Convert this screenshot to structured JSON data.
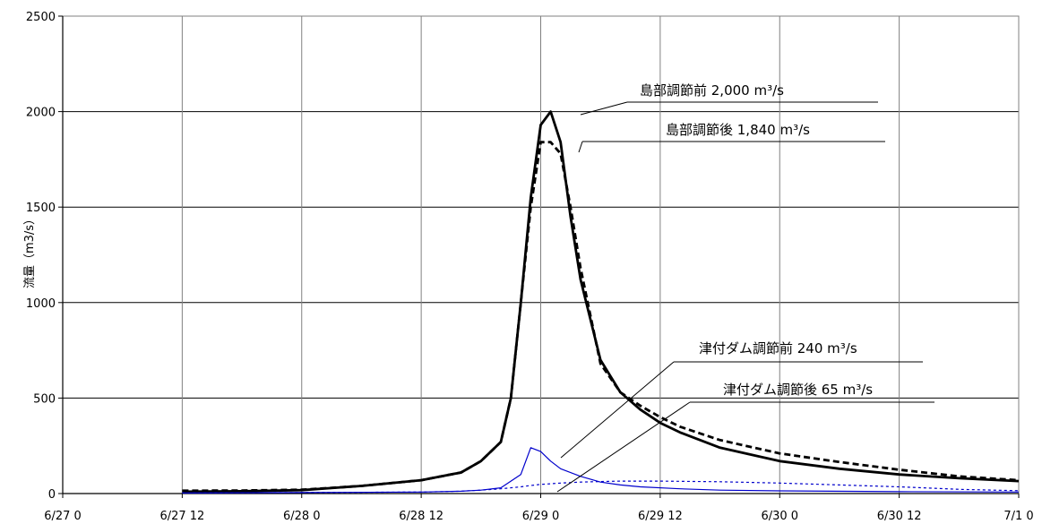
{
  "chart_data": {
    "type": "line",
    "ylabel": "流量（m3/s）",
    "xlabel": "",
    "title": "",
    "ylim": [
      0,
      2500
    ],
    "y_ticks": [
      "0",
      "500",
      "1000",
      "1500",
      "2000",
      "2500"
    ],
    "x_ticks": [
      "6/27 0",
      "6/27 12",
      "6/28 0",
      "6/28 12",
      "6/29 0",
      "6/29 12",
      "6/30 0",
      "6/30 12",
      "7/1 0"
    ],
    "grid": true,
    "legend": "none",
    "series": [
      {
        "key": "shimabe_before",
        "color": "#000000",
        "style": "solid-thick",
        "x": [
          12,
          18,
          24,
          30,
          36,
          40,
          42,
          44,
          45,
          46,
          47,
          48,
          49,
          50,
          51,
          52,
          54,
          56,
          58,
          60,
          62,
          66,
          72,
          78,
          84,
          90,
          96
        ],
        "y": [
          10,
          12,
          18,
          40,
          70,
          110,
          170,
          270,
          500,
          1000,
          1550,
          1930,
          2000,
          1840,
          1450,
          1120,
          700,
          530,
          440,
          370,
          320,
          240,
          170,
          130,
          100,
          80,
          65
        ]
      },
      {
        "key": "shimabe_after",
        "color": "#000000",
        "style": "dashed-thick",
        "x": [
          12,
          18,
          24,
          30,
          36,
          40,
          42,
          44,
          45,
          46,
          47,
          48,
          49,
          50,
          51,
          52,
          54,
          56,
          58,
          60,
          62,
          66,
          72,
          78,
          84,
          90,
          96
        ],
        "y": [
          15,
          16,
          20,
          40,
          70,
          110,
          170,
          270,
          500,
          1000,
          1500,
          1840,
          1840,
          1780,
          1500,
          1180,
          680,
          530,
          460,
          400,
          350,
          280,
          210,
          165,
          125,
          90,
          70
        ]
      },
      {
        "key": "tsuzuki_before",
        "color": "#0000cc",
        "style": "solid-thin",
        "x": [
          12,
          24,
          36,
          40,
          42,
          44,
          46,
          47,
          48,
          49,
          50,
          52,
          54,
          56,
          58,
          62,
          66,
          72,
          84,
          96
        ],
        "y": [
          3,
          5,
          8,
          12,
          18,
          30,
          100,
          240,
          220,
          170,
          130,
          90,
          60,
          45,
          35,
          25,
          18,
          14,
          10,
          8
        ]
      },
      {
        "key": "tsuzuki_after",
        "color": "#0000cc",
        "style": "dotted-thin",
        "x": [
          12,
          24,
          36,
          40,
          42,
          44,
          46,
          47,
          48,
          50,
          52,
          54,
          56,
          60,
          66,
          72,
          78,
          84,
          90,
          96
        ],
        "y": [
          3,
          5,
          8,
          12,
          18,
          25,
          35,
          42,
          48,
          55,
          60,
          63,
          65,
          65,
          62,
          55,
          45,
          35,
          22,
          15
        ]
      }
    ],
    "annotations": [
      {
        "key": "shimabe_before",
        "label": "島部調節前 2,000 m³/s"
      },
      {
        "key": "shimabe_after",
        "label": "島部調節後 1,840 m³/s"
      },
      {
        "key": "tsuzuki_before",
        "label": "津付ダム調節前 240 m³/s"
      },
      {
        "key": "tsuzuki_after",
        "label": "津付ダム調節後 65 m³/s"
      }
    ]
  }
}
